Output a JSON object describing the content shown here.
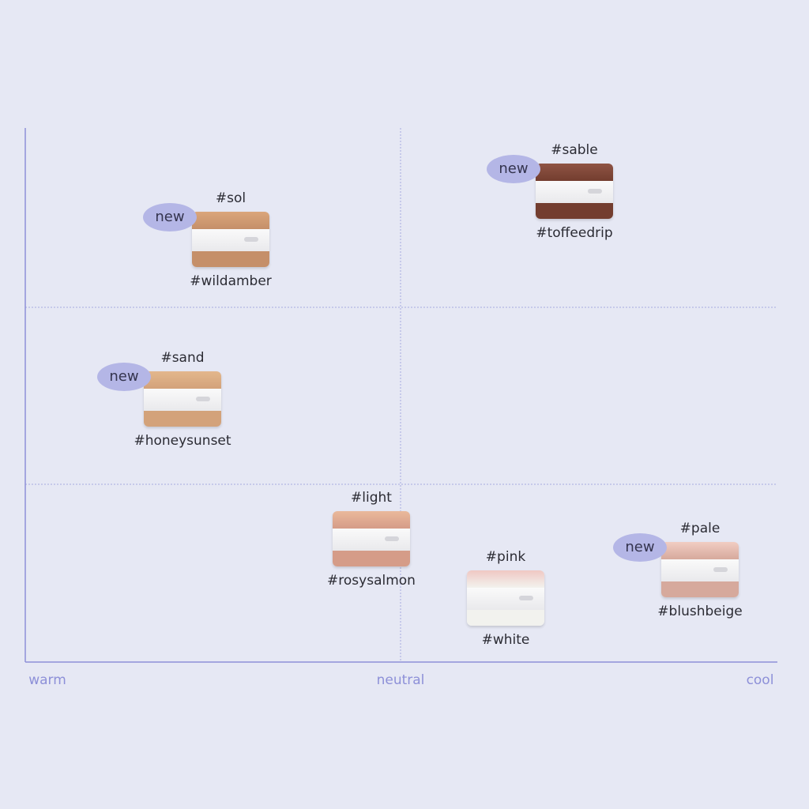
{
  "axis": {
    "left": "warm",
    "center": "neutral",
    "right": "cool"
  },
  "products": [
    {
      "top": "#sol",
      "bottom": "#wildamber",
      "badge": "new"
    },
    {
      "top": "#sable",
      "bottom": "#toffeedrip",
      "badge": "new"
    },
    {
      "top": "#sand",
      "bottom": "#honeysunset",
      "badge": "new"
    },
    {
      "top": "#light",
      "bottom": "#rosysalmon"
    },
    {
      "top": "#pink",
      "bottom": "#white"
    },
    {
      "top": "#pale",
      "bottom": "#blushbeige",
      "badge": "new"
    }
  ]
}
